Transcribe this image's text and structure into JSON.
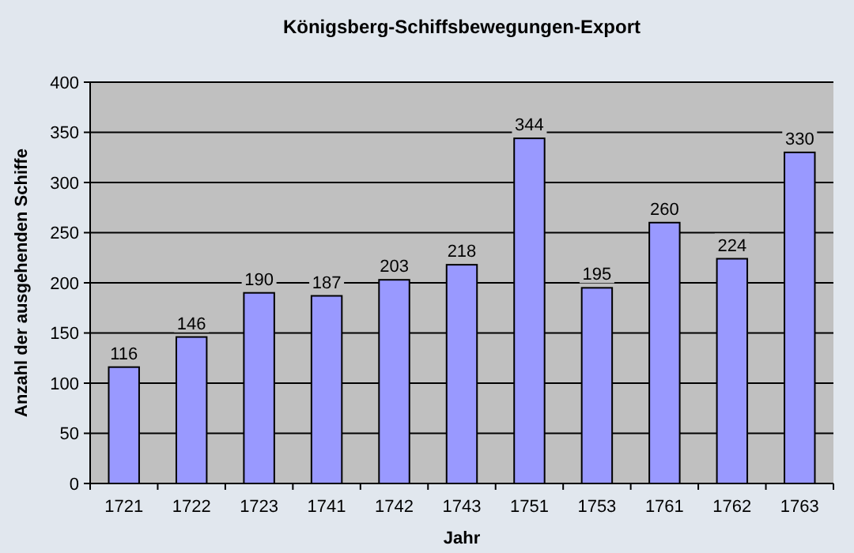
{
  "chart_data": {
    "type": "bar",
    "title": "Königsberg-Schiffsbewegungen-Export",
    "xlabel": "Jahr",
    "ylabel": "Anzahl der ausgehenden Schiffe",
    "categories": [
      "1721",
      "1722",
      "1723",
      "1741",
      "1742",
      "1743",
      "1751",
      "1753",
      "1761",
      "1762",
      "1763"
    ],
    "values": [
      116,
      146,
      190,
      187,
      203,
      218,
      344,
      195,
      260,
      224,
      330
    ],
    "color": "#9999ff",
    "ylim": [
      0,
      400
    ],
    "yticks": [
      0,
      50,
      100,
      150,
      200,
      250,
      300,
      350,
      400
    ],
    "grid": "y",
    "data_labels": true
  }
}
